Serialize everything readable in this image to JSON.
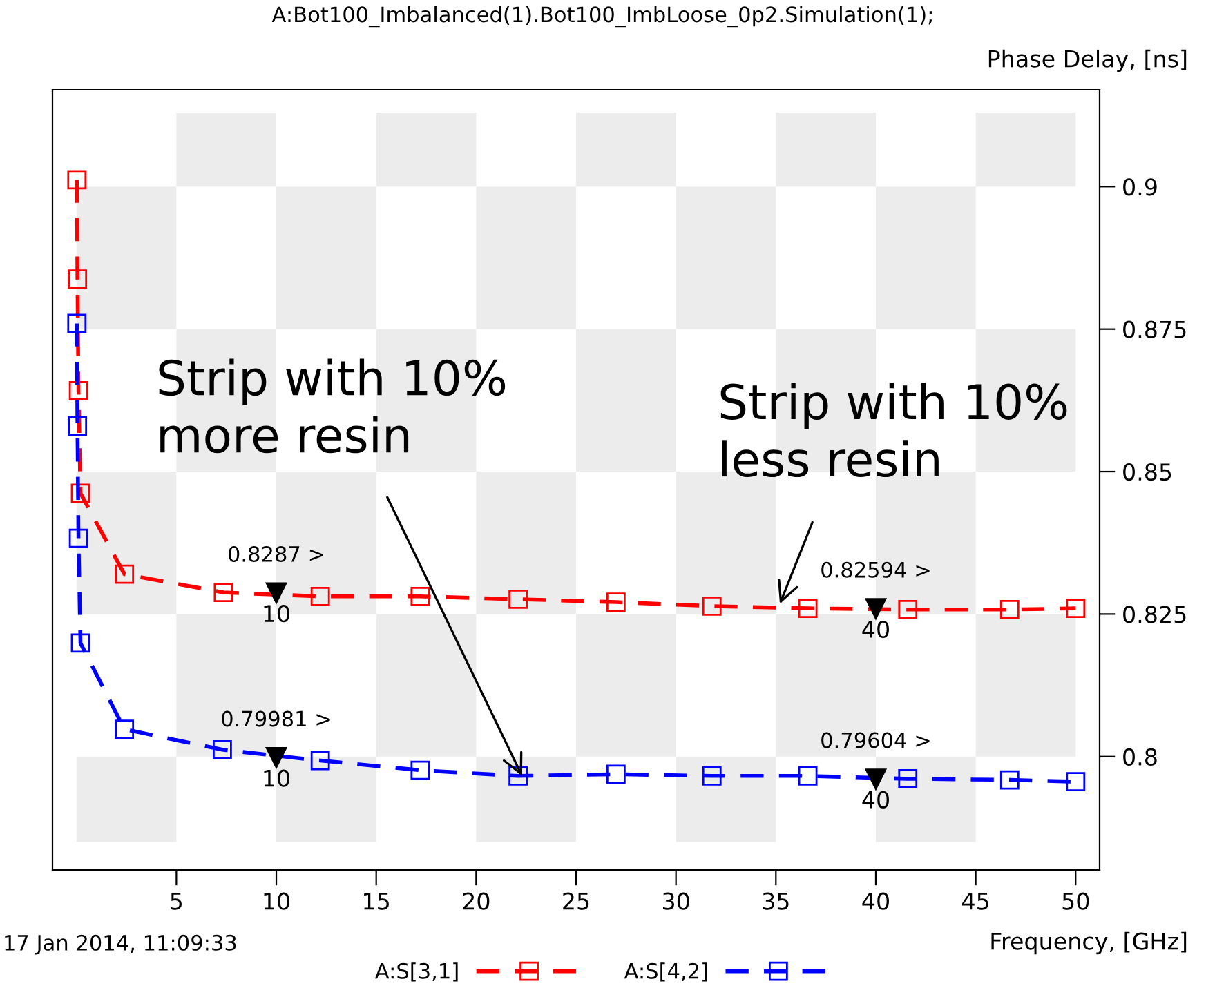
{
  "chart_data": {
    "type": "line",
    "title": "A:Bot100_Imbalanced(1).Bot100_ImbLoose_0p2.Simulation(1);",
    "xlabel": "Frequency, [GHz]",
    "ylabel": "Phase Delay, [ns]",
    "xlim": [
      -1.2,
      51.2
    ],
    "ylim": [
      0.7801,
      0.917
    ],
    "xticks": [
      5,
      10,
      15,
      20,
      25,
      30,
      35,
      40,
      45,
      50
    ],
    "yticks": [
      0.8,
      0.825,
      0.85,
      0.875,
      0.9
    ],
    "marker": "square",
    "line_style": "dashed",
    "legend": "bottom",
    "series": [
      {
        "name": "A:S[3,1]",
        "color": "#ff0000",
        "x": [
          0.02,
          0.05,
          0.1,
          0.2,
          2.4,
          7.35,
          12.2,
          17.2,
          22.1,
          27,
          31.8,
          36.6,
          41.6,
          46.7,
          50
        ],
        "values": [
          0.9012,
          0.8838,
          0.8642,
          0.8462,
          0.832,
          0.8288,
          0.8281,
          0.8281,
          0.8276,
          0.8271,
          0.8264,
          0.826,
          0.8258,
          0.8258,
          0.826
        ]
      },
      {
        "name": "A:S[4,2]",
        "color": "#0000ff",
        "x": [
          0.02,
          0.05,
          0.1,
          0.2,
          2.4,
          7.3,
          12.2,
          17.2,
          22.1,
          27,
          31.8,
          36.6,
          41.6,
          46.7,
          50
        ],
        "values": [
          0.876,
          0.858,
          0.8383,
          0.8199,
          0.8048,
          0.8012,
          0.7993,
          0.7976,
          0.7966,
          0.7969,
          0.7966,
          0.7966,
          0.7961,
          0.7959,
          0.7956
        ]
      }
    ],
    "annotations": [
      {
        "text": "Strip with 10%\nmore resin",
        "x": 22.3,
        "y": 0.7966
      },
      {
        "text": "Strip with 10%\nless resin",
        "x": 35.2,
        "y": 0.8268
      },
      {
        "text": "0.8287 >",
        "x": 10,
        "y": 0.8287
      },
      {
        "text": "10",
        "x": 10,
        "y": 0.8287
      },
      {
        "text": "0.79981 >",
        "x": 10,
        "y": 0.79981
      },
      {
        "text": "10",
        "x": 10,
        "y": 0.79981
      },
      {
        "text": "0.82594 >",
        "x": 40,
        "y": 0.82594
      },
      {
        "text": "40",
        "x": 40,
        "y": 0.82594
      },
      {
        "text": "0.79604 >",
        "x": 40,
        "y": 0.79604
      },
      {
        "text": "40",
        "x": 40,
        "y": 0.79604
      },
      "17 Jan 2014, 11:09:33"
    ]
  }
}
